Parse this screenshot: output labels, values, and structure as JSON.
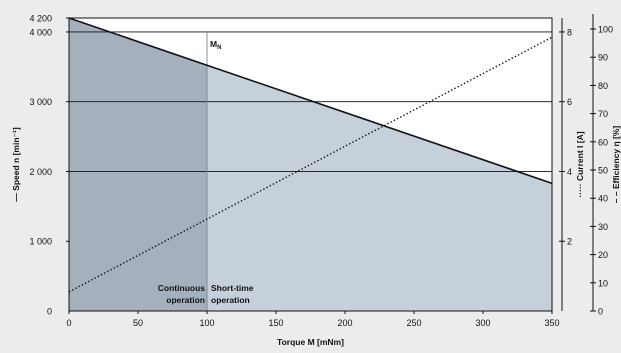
{
  "chart_data": {
    "type": "line",
    "xlabel": "Torque M [mNm]",
    "x_ticks": [
      0,
      50,
      100,
      150,
      200,
      250,
      300,
      350
    ],
    "xlim": [
      0,
      350
    ],
    "y_left": {
      "label": "Speed n [min⁻¹]",
      "legend_marker": "—",
      "ticks": [
        0,
        1000,
        2000,
        3000,
        4000,
        4200
      ],
      "tick_labels": [
        "0",
        "1 000",
        "2 000",
        "3 000",
        "4 000",
        "4 200"
      ],
      "ylim": [
        0,
        4200
      ]
    },
    "y_right_current": {
      "label": "Current I [A]",
      "legend_marker": "·····",
      "ticks": [
        2,
        4,
        6,
        8
      ],
      "ylim": [
        0,
        8.4
      ]
    },
    "y_right_efficiency": {
      "label": "Efficiency η [%]",
      "legend_marker": "– –",
      "ticks": [
        0,
        10,
        20,
        30,
        40,
        50,
        60,
        70,
        80,
        90,
        100
      ],
      "ylim": [
        0,
        100
      ]
    },
    "series": [
      {
        "name": "Speed n",
        "axis": "left",
        "style": "solid",
        "x": [
          0,
          350
        ],
        "y": [
          4200,
          1830
        ]
      },
      {
        "name": "Current I",
        "axis": "current",
        "style": "dotted",
        "x": [
          0,
          350
        ],
        "y": [
          0.55,
          7.85
        ]
      }
    ],
    "rated_torque": {
      "label": "M",
      "subscript": "N",
      "x": 100
    },
    "regions": [
      {
        "label_lines": [
          "Continuous",
          "operation"
        ],
        "x_from": 0,
        "x_to": 100,
        "color": "#a4b0bc"
      },
      {
        "label_lines": [
          "Short-time",
          "operation"
        ],
        "x_from": 100,
        "x_to": 350,
        "color": "#c6d0da"
      }
    ],
    "gridlines_y": [
      2000,
      3000,
      4000
    ]
  }
}
